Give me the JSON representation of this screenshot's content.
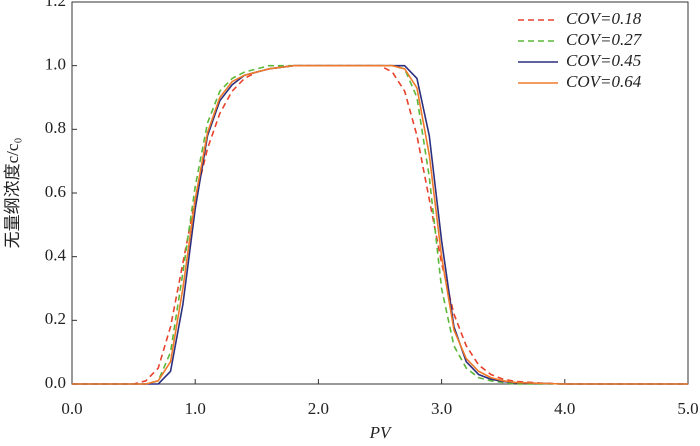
{
  "chart_data": {
    "type": "line",
    "xlabel": "PV",
    "ylabel": "无量纲浓度c/c₀",
    "x": [
      0,
      0.5,
      0.6,
      0.7,
      0.8,
      0.9,
      1.0,
      1.1,
      1.2,
      1.3,
      1.4,
      1.5,
      1.6,
      1.8,
      2.0,
      2.5,
      2.6,
      2.7,
      2.8,
      2.9,
      3.0,
      3.1,
      3.2,
      3.3,
      3.4,
      3.5,
      3.6,
      3.8,
      4.0,
      5.0
    ],
    "series": [
      {
        "name": "COV=0.18",
        "color": "#e8412c",
        "dash": true,
        "values": [
          0,
          0,
          0.01,
          0.05,
          0.18,
          0.38,
          0.58,
          0.74,
          0.85,
          0.92,
          0.96,
          0.98,
          0.99,
          1,
          1,
          1,
          0.98,
          0.92,
          0.78,
          0.58,
          0.38,
          0.22,
          0.12,
          0.06,
          0.03,
          0.015,
          0.008,
          0.003,
          0,
          0
        ]
      },
      {
        "name": "COV=0.27",
        "color": "#5cb83a",
        "dash": true,
        "values": [
          0,
          0,
          0,
          0.01,
          0.1,
          0.35,
          0.62,
          0.82,
          0.92,
          0.96,
          0.98,
          0.99,
          1,
          1,
          1,
          1,
          1,
          0.99,
          0.9,
          0.65,
          0.3,
          0.12,
          0.05,
          0.02,
          0.01,
          0.005,
          0,
          0,
          0,
          0
        ]
      },
      {
        "name": "COV=0.45",
        "color": "#2c2f7e",
        "dash": false,
        "values": [
          0,
          0,
          0,
          0,
          0.04,
          0.25,
          0.55,
          0.78,
          0.89,
          0.94,
          0.97,
          0.98,
          0.99,
          1,
          1,
          1,
          1,
          1,
          0.96,
          0.78,
          0.45,
          0.18,
          0.07,
          0.03,
          0.015,
          0.008,
          0.004,
          0.002,
          0,
          0
        ]
      },
      {
        "name": "COV=0.64",
        "color": "#f07a2a",
        "dash": false,
        "values": [
          0,
          0,
          0,
          0.01,
          0.07,
          0.3,
          0.58,
          0.79,
          0.9,
          0.95,
          0.97,
          0.98,
          0.99,
          1,
          1,
          1,
          1,
          0.99,
          0.93,
          0.72,
          0.4,
          0.17,
          0.08,
          0.04,
          0.02,
          0.01,
          0.005,
          0.002,
          0,
          0
        ]
      }
    ],
    "xlim": [
      0,
      5
    ],
    "xticks": [
      {
        "value": 0,
        "label": "0.0"
      },
      {
        "value": 1,
        "label": "1.0"
      },
      {
        "value": 2,
        "label": "2.0"
      },
      {
        "value": 3,
        "label": "3.0"
      },
      {
        "value": 4,
        "label": "4.0"
      },
      {
        "value": 5,
        "label": "5.0"
      }
    ],
    "ylim": [
      0,
      1.2
    ],
    "yticks": [
      {
        "value": 0,
        "label": "0.0"
      },
      {
        "value": 0.2,
        "label": "0.2"
      },
      {
        "value": 0.4,
        "label": "0.4"
      },
      {
        "value": 0.6,
        "label": "0.6"
      },
      {
        "value": 0.8,
        "label": "0.8"
      },
      {
        "value": 1.0,
        "label": "1.0"
      },
      {
        "value": 1.2,
        "label": "1.2"
      }
    ],
    "legend": "top-right"
  }
}
